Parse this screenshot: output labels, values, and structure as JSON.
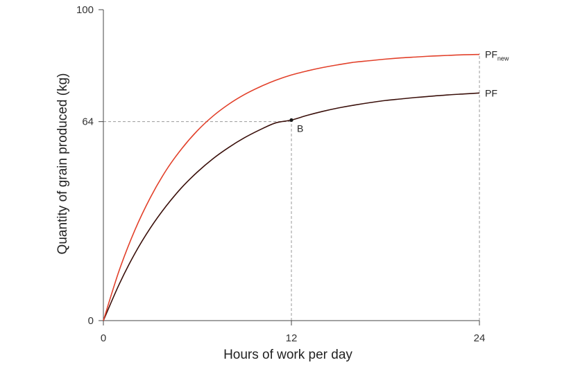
{
  "chart_data": {
    "type": "line",
    "title": "",
    "xlabel": "Hours of work per day",
    "ylabel": "Quantity of grain produced (kg)",
    "xlim": [
      0,
      24
    ],
    "ylim": [
      0,
      100
    ],
    "x_ticks": [
      {
        "value": 0,
        "label": "0"
      },
      {
        "value": 12,
        "label": "12"
      },
      {
        "value": 24,
        "label": "24"
      }
    ],
    "y_ticks": [
      {
        "value": 0,
        "label": "0"
      },
      {
        "value": 64,
        "label": "64"
      },
      {
        "value": 100,
        "label": "100"
      }
    ],
    "grid": false,
    "series": [
      {
        "name": "PF",
        "label_main": "PF",
        "label_sub": "",
        "color": "#3a0f0a",
        "x": [
          0,
          1,
          2,
          3,
          4,
          5,
          6,
          7,
          8,
          9,
          10,
          11,
          12,
          13,
          14,
          15,
          16,
          17,
          18,
          19,
          20,
          21,
          22,
          23,
          24
        ],
        "y": [
          0,
          11.6,
          21.5,
          29.8,
          36.8,
          42.8,
          47.8,
          52.1,
          55.7,
          58.8,
          61.4,
          63.6,
          64.5,
          66.0,
          67.3,
          68.4,
          69.3,
          70.1,
          70.8,
          71.3,
          71.8,
          72.2,
          72.6,
          72.9,
          73.2
        ]
      },
      {
        "name": "PF new",
        "label_main": "PF",
        "label_sub": "new",
        "color": "#e2402a",
        "x": [
          0,
          1,
          2,
          3,
          4,
          5,
          6,
          7,
          8,
          9,
          10,
          11,
          12,
          13,
          14,
          15,
          16,
          17,
          18,
          19,
          20,
          21,
          22,
          23,
          24
        ],
        "y": [
          0,
          16.0,
          29.0,
          39.6,
          48.3,
          55.3,
          61.1,
          65.8,
          69.6,
          72.7,
          75.2,
          77.3,
          79.0,
          80.3,
          81.4,
          82.3,
          83.1,
          83.6,
          84.1,
          84.5,
          84.8,
          85.1,
          85.3,
          85.5,
          85.6
        ]
      }
    ],
    "points": [
      {
        "label": "B",
        "x": 12,
        "y": 64.5
      }
    ],
    "guides": [
      {
        "x": 12,
        "y": 64
      },
      {
        "x": 24,
        "y": 0
      }
    ]
  }
}
